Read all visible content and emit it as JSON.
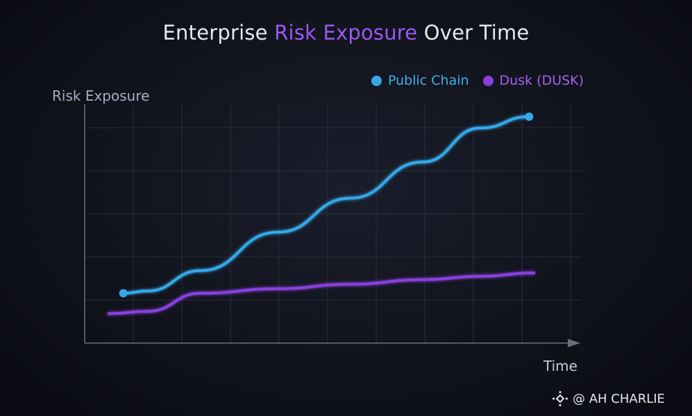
{
  "chart_data": {
    "type": "line",
    "title_parts": [
      "Enterprise ",
      "Risk Exposure",
      " Over Time"
    ],
    "title": "Enterprise Risk Exposure Over Time",
    "ylabel": "Risk Exposure",
    "xlabel": "Time",
    "grid": true,
    "legend_position": "top-right",
    "xlim": [
      0,
      10
    ],
    "ylim": [
      0,
      10
    ],
    "series": [
      {
        "name": "Public Chain",
        "color": "#35a8e8",
        "x": [
          0.8,
          1.3,
          2.4,
          4.0,
          5.5,
          7.0,
          8.2,
          9.2
        ],
        "y": [
          2.2,
          2.3,
          3.2,
          4.9,
          6.4,
          8.0,
          9.5,
          10.0
        ],
        "endpoint_markers": true
      },
      {
        "name": "Dusk (DUSK)",
        "color": "#8a3fe0",
        "x": [
          0.5,
          1.3,
          2.4,
          4.0,
          5.5,
          7.0,
          8.2,
          9.3
        ],
        "y": [
          1.3,
          1.4,
          2.2,
          2.4,
          2.6,
          2.8,
          2.95,
          3.1
        ],
        "endpoint_markers": false
      }
    ]
  },
  "colors": {
    "title_text": "#e6e8f2",
    "title_accent": "#9b59f0",
    "axis": "#6b6f80",
    "grid": "#2a2e3c"
  },
  "watermark": {
    "text": "@ AH CHARLIE",
    "icon": "binance-logo-icon"
  }
}
